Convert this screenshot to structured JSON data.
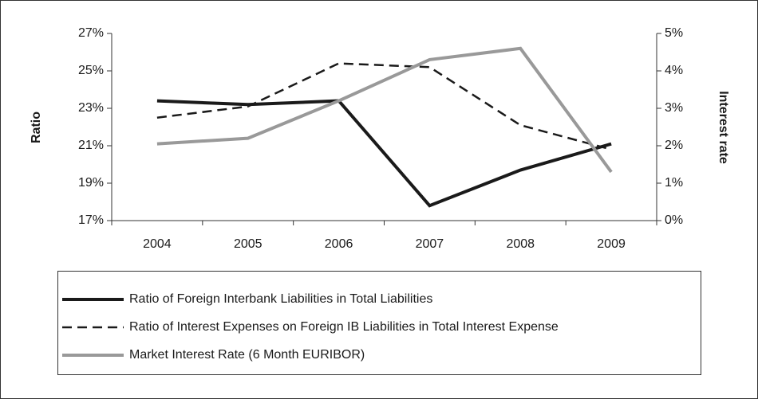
{
  "chart_data": {
    "type": "line",
    "ylabel": "Ratio",
    "y2label": "Interest rate",
    "categories": [
      "2004",
      "2005",
      "2006",
      "2007",
      "2008",
      "2009"
    ],
    "series": [
      {
        "name": "Ratio of Foreign Interbank Liabilities in Total Liabilities",
        "color": "#1a1a1a",
        "style": "solid",
        "axis": "y",
        "values": [
          23.4,
          23.2,
          23.4,
          17.8,
          19.7,
          21.1
        ]
      },
      {
        "name": "Ratio of Interest Expenses on Foreign IB Liabilities in Total Interest Expense",
        "color": "#1a1a1a",
        "style": "dashed",
        "axis": "y",
        "values": [
          22.5,
          23.1,
          25.4,
          25.2,
          22.1,
          20.8
        ]
      },
      {
        "name": "Market Interest Rate (6 Month EURIBOR)",
        "color": "#999999",
        "style": "solid",
        "axis": "y2",
        "values": [
          2.05,
          2.2,
          3.2,
          4.3,
          4.6,
          1.3
        ]
      }
    ],
    "ylim": [
      17,
      27
    ],
    "yticks": [
      {
        "value": 17,
        "label": "17%"
      },
      {
        "value": 19,
        "label": "19%"
      },
      {
        "value": 21,
        "label": "21%"
      },
      {
        "value": 23,
        "label": "23%"
      },
      {
        "value": 25,
        "label": "25%"
      },
      {
        "value": 27,
        "label": "27%"
      }
    ],
    "y2lim": [
      0,
      5
    ],
    "y2ticks": [
      {
        "value": 0,
        "label": "0%"
      },
      {
        "value": 1,
        "label": "1%"
      },
      {
        "value": 2,
        "label": "2%"
      },
      {
        "value": 3,
        "label": "3%"
      },
      {
        "value": 4,
        "label": "4%"
      },
      {
        "value": 5,
        "label": "5%"
      }
    ],
    "grid": false
  }
}
